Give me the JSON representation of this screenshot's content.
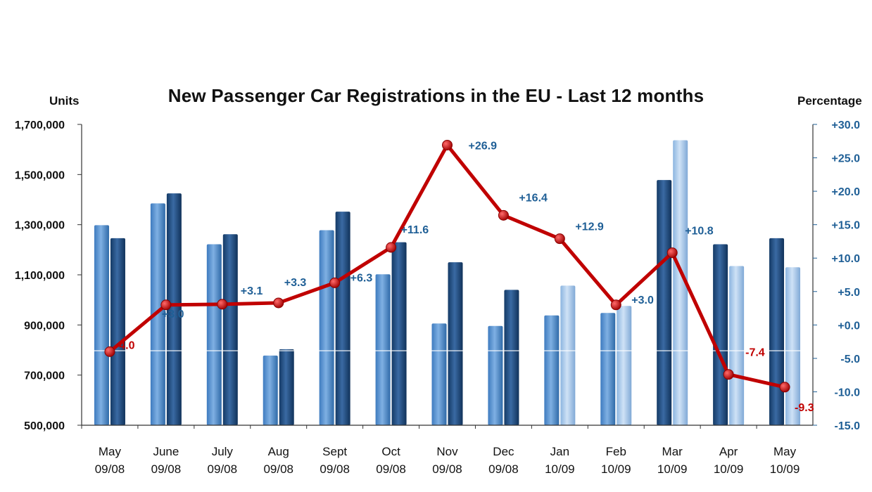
{
  "chart_data": {
    "type": "bar",
    "title": "New Passenger Car Registrations in the EU - Last 12 months",
    "ylabel": "Units",
    "y2label": "Percentage",
    "categories": [
      [
        "May",
        "09/08"
      ],
      [
        "June",
        "09/08"
      ],
      [
        "July",
        "09/08"
      ],
      [
        "Aug",
        "09/08"
      ],
      [
        "Sept",
        "09/08"
      ],
      [
        "Oct",
        "09/08"
      ],
      [
        "Nov",
        "09/08"
      ],
      [
        "Dec",
        "09/08"
      ],
      [
        "Jan",
        "10/09"
      ],
      [
        "Feb",
        "10/09"
      ],
      [
        "Mar",
        "10/09"
      ],
      [
        "Apr",
        "10/09"
      ],
      [
        "May",
        "10/09"
      ]
    ],
    "ylim": [
      500000,
      1700000
    ],
    "yticks": [
      "1,700,000",
      "1,500,000",
      "1,300,000",
      "1,100,000",
      "900,000",
      "700,000",
      "500,000"
    ],
    "y2lim": [
      -15,
      30
    ],
    "y2ticks": [
      "+30.0",
      "+25.0",
      "+20.0",
      "+15.0",
      "+10.0",
      "+5.0",
      "+0.0",
      "-5.0",
      "-10.0",
      "-15.0"
    ],
    "series": [
      {
        "values": [
          1298000,
          1385000,
          1222000,
          778000,
          1278000,
          1102000,
          906000,
          896000,
          938000,
          948000,
          1478000,
          1222000,
          1246000
        ]
      },
      {
        "values": [
          1246000,
          1425000,
          1262000,
          803000,
          1352000,
          1230000,
          1150000,
          1040000,
          1057000,
          976000,
          1637000,
          1135000,
          1130000
        ]
      }
    ],
    "line_series": {
      "values": [
        -4.0,
        3.0,
        3.1,
        3.3,
        6.3,
        11.6,
        26.9,
        16.4,
        12.9,
        3.0,
        10.8,
        -7.4,
        -9.3
      ],
      "labels": [
        "-4.0",
        "+3.0",
        "+3.1",
        "+3.3",
        "+6.3",
        "+11.6",
        "+26.9",
        "+16.4",
        "+12.9",
        "+3.0",
        "+10.8",
        "-7.4",
        "-9.3"
      ]
    },
    "colors": {
      "bar_light": "#5d97d3",
      "bar_dark": "#1f4a7c",
      "bar_pale": "#a8c8ea",
      "line": "#c00000",
      "positive_label": "#1f5f96",
      "negative_label": "#c00000"
    },
    "grid": false,
    "legend": "none"
  }
}
